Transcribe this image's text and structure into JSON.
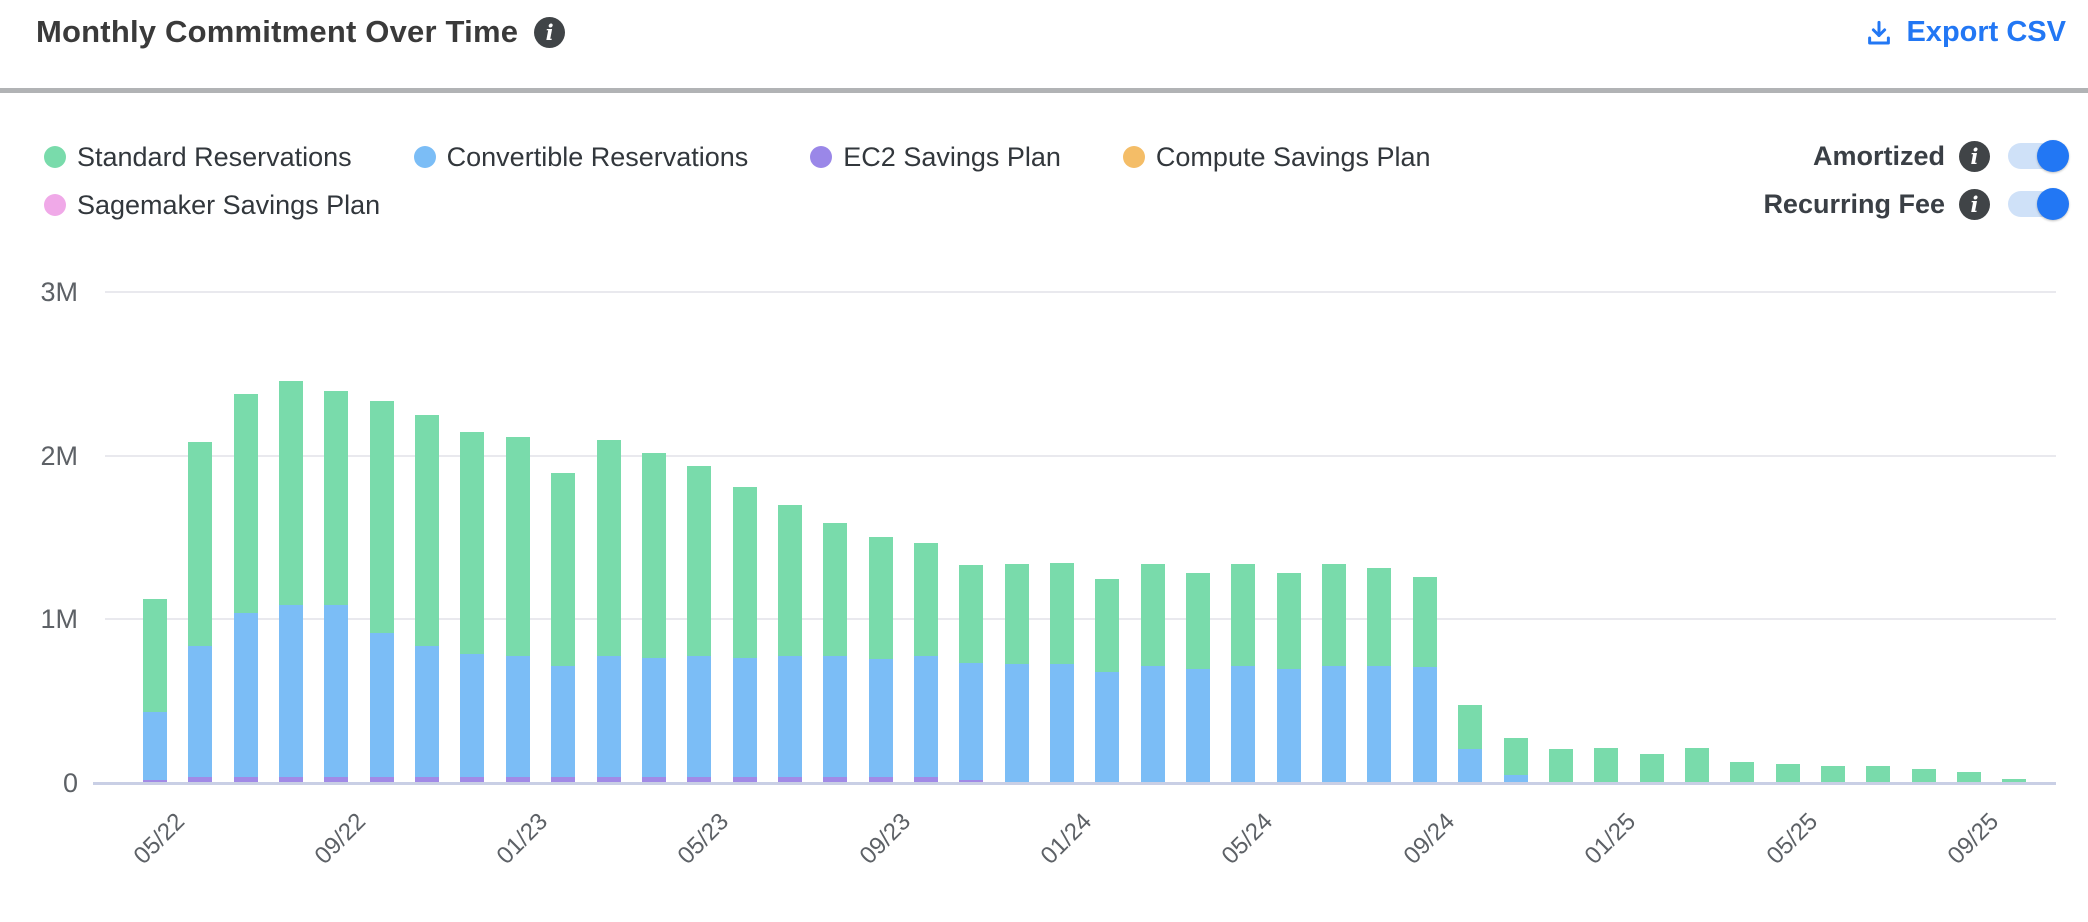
{
  "header": {
    "title": "Monthly Commitment Over Time",
    "title_info_icon": "info-icon",
    "export_label": "Export CSV"
  },
  "legend": {
    "rows": [
      [
        {
          "label": "Standard Reservations",
          "color": "#79dbab"
        },
        {
          "label": "Convertible Reservations",
          "color": "#7bbdf6"
        },
        {
          "label": "EC2 Savings Plan",
          "color": "#9a87e8"
        },
        {
          "label": "Compute Savings Plan",
          "color": "#f4bd67"
        }
      ],
      [
        {
          "label": "Sagemaker Savings Plan",
          "color": "#f0a9e8"
        }
      ]
    ]
  },
  "toggles": [
    {
      "label": "Amortized",
      "state": "on"
    },
    {
      "label": "Recurring Fee",
      "state": "on"
    }
  ],
  "colors": {
    "accent_blue": "#2277f4",
    "toggle_track": "#cfe1f8",
    "gridline": "#e9e9ee",
    "baseline": "#c9cfe5",
    "axis_text": "#5d6166",
    "title_text": "#3a3a3a",
    "divider": "#b1b3b5"
  },
  "chart_data": {
    "type": "bar",
    "stacked": true,
    "title": "Monthly Commitment Over Time",
    "xlabel": "",
    "ylabel": "",
    "ylim": [
      0,
      3
    ],
    "grid": "horizontal",
    "legend_position": "top-left",
    "y_ticks": [
      {
        "value": 0,
        "label": "0"
      },
      {
        "value": 1,
        "label": "1M"
      },
      {
        "value": 2,
        "label": "2M"
      },
      {
        "value": 3,
        "label": "3M"
      }
    ],
    "x": [
      "05/22",
      "06/22",
      "07/22",
      "08/22",
      "09/22",
      "10/22",
      "11/22",
      "12/22",
      "01/23",
      "02/23",
      "03/23",
      "04/23",
      "05/23",
      "06/23",
      "07/23",
      "08/23",
      "09/23",
      "10/23",
      "11/23",
      "12/23",
      "01/24",
      "02/24",
      "03/24",
      "04/24",
      "05/24",
      "06/24",
      "07/24",
      "08/24",
      "09/24",
      "10/24",
      "11/24",
      "12/24",
      "01/25",
      "02/25",
      "03/25",
      "04/25",
      "05/25",
      "06/25",
      "07/25",
      "08/25",
      "09/25",
      "10/25"
    ],
    "x_tick_every": 4,
    "x_tick_labels": [
      "05/22",
      "09/22",
      "01/23",
      "05/23",
      "09/23",
      "01/24",
      "05/24",
      "09/24",
      "01/25",
      "05/25",
      "09/25"
    ],
    "stack_bottom_to_top": [
      "EC2 Savings Plan",
      "Convertible Reservations",
      "Standard Reservations",
      "Compute Savings Plan",
      "Sagemaker Savings Plan"
    ],
    "value_unit": "M",
    "series": [
      {
        "name": "Standard Reservations",
        "color": "#79dbab",
        "values": [
          0.69,
          1.25,
          1.34,
          1.37,
          1.31,
          1.42,
          1.41,
          1.36,
          1.34,
          1.18,
          1.32,
          1.25,
          1.16,
          1.04,
          0.92,
          0.81,
          0.75,
          0.69,
          0.6,
          0.61,
          0.62,
          0.57,
          0.62,
          0.59,
          0.62,
          0.59,
          0.62,
          0.6,
          0.55,
          0.27,
          0.23,
          0.2,
          0.21,
          0.17,
          0.21,
          0.12,
          0.11,
          0.1,
          0.1,
          0.08,
          0.06,
          0.02
        ]
      },
      {
        "name": "Convertible Reservations",
        "color": "#7bbdf6",
        "values": [
          0.42,
          0.8,
          1.0,
          1.05,
          1.05,
          0.88,
          0.8,
          0.75,
          0.74,
          0.68,
          0.74,
          0.73,
          0.74,
          0.73,
          0.74,
          0.74,
          0.72,
          0.74,
          0.71,
          0.72,
          0.72,
          0.67,
          0.71,
          0.69,
          0.71,
          0.69,
          0.71,
          0.71,
          0.7,
          0.2,
          0.04,
          0,
          0,
          0,
          0,
          0,
          0,
          0,
          0,
          0,
          0,
          0
        ]
      },
      {
        "name": "EC2 Savings Plan",
        "color": "#a18ae6",
        "values": [
          0.01,
          0.03,
          0.03,
          0.03,
          0.03,
          0.03,
          0.03,
          0.03,
          0.03,
          0.03,
          0.03,
          0.03,
          0.03,
          0.03,
          0.03,
          0.03,
          0.03,
          0.03,
          0.015,
          0,
          0,
          0,
          0,
          0,
          0,
          0,
          0,
          0,
          0,
          0,
          0,
          0,
          0,
          0,
          0,
          0,
          0,
          0,
          0,
          0,
          0,
          0
        ]
      },
      {
        "name": "Compute Savings Plan",
        "color": "#f4bd67",
        "values": [
          0,
          0,
          0,
          0,
          0,
          0,
          0,
          0,
          0,
          0,
          0,
          0,
          0,
          0,
          0,
          0,
          0,
          0,
          0,
          0,
          0,
          0,
          0,
          0,
          0,
          0,
          0,
          0,
          0,
          0,
          0,
          0,
          0,
          0,
          0,
          0,
          0,
          0,
          0,
          0,
          0,
          0
        ]
      },
      {
        "name": "Sagemaker Savings Plan",
        "color": "#f0a9e8",
        "values": [
          0,
          0,
          0,
          0,
          0,
          0,
          0,
          0,
          0,
          0,
          0,
          0,
          0,
          0,
          0,
          0,
          0,
          0,
          0,
          0,
          0,
          0,
          0,
          0,
          0,
          0,
          0,
          0,
          0,
          0,
          0,
          0,
          0,
          0,
          0,
          0,
          0,
          0,
          0,
          0,
          0,
          0
        ]
      }
    ]
  }
}
